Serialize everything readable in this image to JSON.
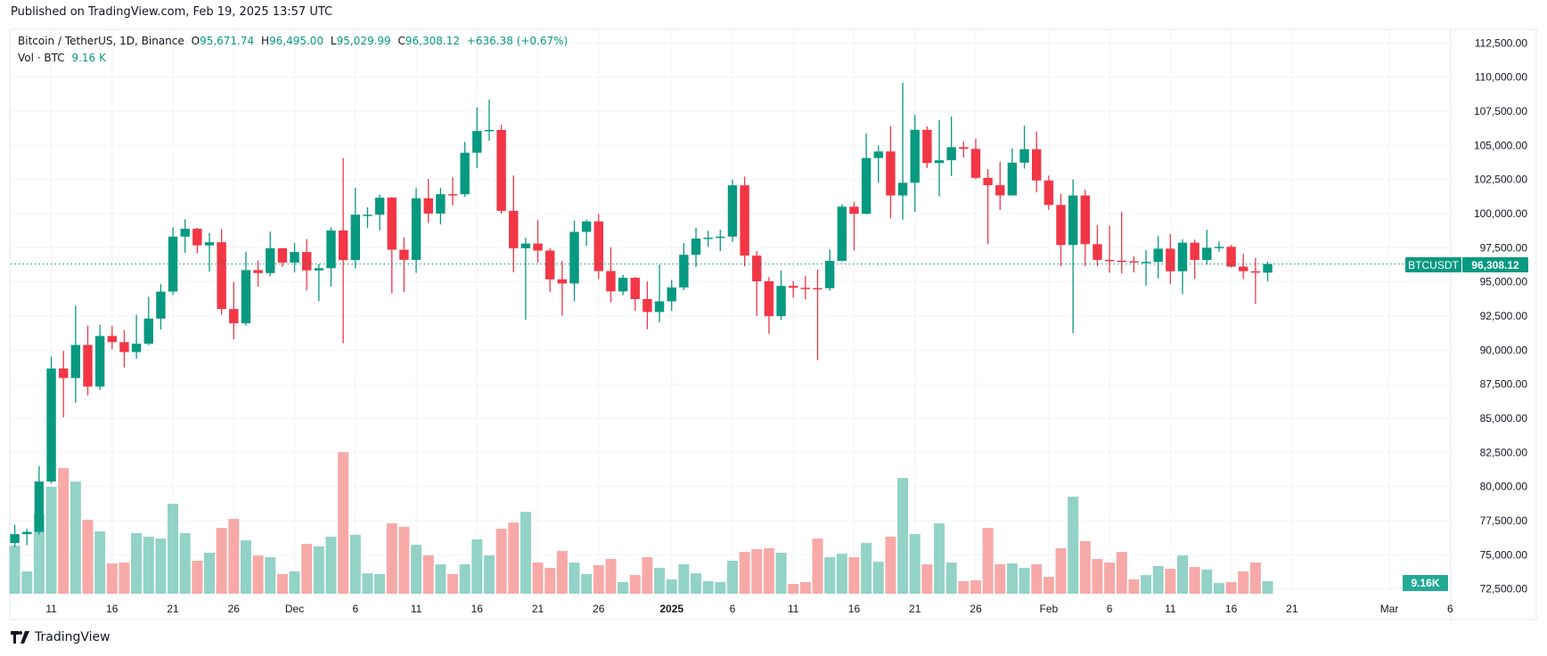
{
  "header": {
    "published": "Published on TradingView.com, Feb 19, 2025 13:57 UTC"
  },
  "legend": {
    "symbol": "Bitcoin / TetherUS, 1D, Binance",
    "o_label": "O",
    "o": "95,671.74",
    "h_label": "H",
    "h": "96,495.00",
    "l_label": "L",
    "l": "95,029.99",
    "c_label": "C",
    "c": "96,308.12",
    "change": "+636.38 (+0.67%)",
    "vol_label": "Vol · BTC",
    "vol": "9.16 K"
  },
  "footer": {
    "brand": "TradingView",
    "logo_icon": "tradingview-logo-icon"
  },
  "colors": {
    "up": "#089981",
    "down": "#F23645",
    "up_volume": "#92d2c7",
    "down_volume": "#f7a9a7",
    "grid": "#f0f3fa"
  },
  "price_label": {
    "symbol": "BTCUSDT",
    "price": "96,308.12",
    "volume": "9.16K"
  },
  "chart_data": {
    "type": "candlestick",
    "title": "Bitcoin / TetherUS, 1D, Binance",
    "ylim": [
      71500,
      113500
    ],
    "grid": true,
    "current_price": 96308.12,
    "y_ticks": [
      "72,500.00",
      "75,000.00",
      "77,500.00",
      "80,000.00",
      "82,500.00",
      "85,000.00",
      "87,500.00",
      "90,000.00",
      "92,500.00",
      "95,000.00",
      "97,500.00",
      "100,000.00",
      "102,500.00",
      "105,000.00",
      "107,500.00",
      "110,000.00",
      "112,500.00"
    ],
    "x_ticks": [
      {
        "label": "11",
        "date": "2024-11-11"
      },
      {
        "label": "16",
        "date": "2024-11-16"
      },
      {
        "label": "21",
        "date": "2024-11-21"
      },
      {
        "label": "26",
        "date": "2024-11-26"
      },
      {
        "label": "Dec",
        "date": "2024-12-01"
      },
      {
        "label": "6",
        "date": "2024-12-06"
      },
      {
        "label": "11",
        "date": "2024-12-11"
      },
      {
        "label": "16",
        "date": "2024-12-16"
      },
      {
        "label": "21",
        "date": "2024-12-21"
      },
      {
        "label": "26",
        "date": "2024-12-26"
      },
      {
        "label": "2025",
        "date": "2025-01-01",
        "bold": true
      },
      {
        "label": "6",
        "date": "2025-01-06"
      },
      {
        "label": "11",
        "date": "2025-01-11"
      },
      {
        "label": "16",
        "date": "2025-01-16"
      },
      {
        "label": "21",
        "date": "2025-01-21"
      },
      {
        "label": "26",
        "date": "2025-01-26"
      },
      {
        "label": "Feb",
        "date": "2025-02-01"
      },
      {
        "label": "6",
        "date": "2025-02-06"
      },
      {
        "label": "11",
        "date": "2025-02-11"
      },
      {
        "label": "16",
        "date": "2025-02-16"
      },
      {
        "label": "21",
        "date": "2025-02-21"
      },
      {
        "label": "Mar",
        "date": "2025-03-01"
      },
      {
        "label": "6",
        "date": "2025-03-06"
      }
    ],
    "columns": [
      "date",
      "open",
      "high",
      "low",
      "close",
      "volume_k_btc"
    ],
    "candles": [
      [
        "2024-11-08",
        75857,
        77199,
        75555,
        76509,
        35.3
      ],
      [
        "2024-11-09",
        76509,
        76900,
        75700,
        76677,
        16.4
      ],
      [
        "2024-11-10",
        76677,
        81500,
        76492,
        80370,
        58.9
      ],
      [
        "2024-11-11",
        80370,
        89530,
        80216,
        88647,
        78.5
      ],
      [
        "2024-11-12",
        88647,
        89940,
        85072,
        87952,
        92.2
      ],
      [
        "2024-11-13",
        87952,
        93265,
        86127,
        90375,
        82.4
      ],
      [
        "2024-11-14",
        90375,
        91790,
        86668,
        87325,
        54.3
      ],
      [
        "2024-11-15",
        87325,
        91850,
        87073,
        91032,
        45.8
      ],
      [
        "2024-11-16",
        91032,
        91779,
        90056,
        90586,
        22.2
      ],
      [
        "2024-11-17",
        90586,
        91449,
        88722,
        89855,
        22.9
      ],
      [
        "2024-11-18",
        89855,
        92594,
        89376,
        90464,
        44.5
      ],
      [
        "2024-11-19",
        90464,
        93905,
        90357,
        92310,
        41.9
      ],
      [
        "2024-11-20",
        92310,
        94831,
        91500,
        94286,
        40.5
      ],
      [
        "2024-11-21",
        94286,
        98988,
        94040,
        98317,
        66.1
      ],
      [
        "2024-11-22",
        98317,
        99588,
        97122,
        98892,
        44.5
      ],
      [
        "2024-11-23",
        98892,
        98950,
        97100,
        97672,
        24.2
      ],
      [
        "2024-11-24",
        97672,
        98564,
        95734,
        97900,
        30.1
      ],
      [
        "2024-11-25",
        97900,
        98871,
        92600,
        93010,
        48.4
      ],
      [
        "2024-11-26",
        93010,
        94973,
        90791,
        91965,
        54.9
      ],
      [
        "2024-11-27",
        91965,
        97208,
        91792,
        95863,
        39.2
      ],
      [
        "2024-11-28",
        95863,
        96564,
        94640,
        95643,
        28.1
      ],
      [
        "2024-11-29",
        95643,
        98693,
        95407,
        97460,
        26.8
      ],
      [
        "2024-11-30",
        97460,
        97463,
        96092,
        96407,
        14.4
      ],
      [
        "2024-12-01",
        96407,
        97836,
        95693,
        97185,
        16.4
      ],
      [
        "2024-12-02",
        97185,
        98130,
        94395,
        95840,
        36.6
      ],
      [
        "2024-12-03",
        95840,
        96305,
        93578,
        96002,
        34.7
      ],
      [
        "2024-12-04",
        96002,
        99000,
        94665,
        98768,
        41.9
      ],
      [
        "2024-12-05",
        98768,
        104088,
        90500,
        96593,
        104.0
      ],
      [
        "2024-12-06",
        96593,
        101898,
        95981,
        99920,
        43.2
      ],
      [
        "2024-12-07",
        99920,
        100459,
        98956,
        99923,
        15.0
      ],
      [
        "2024-12-08",
        99923,
        101399,
        98771,
        101170,
        14.4
      ],
      [
        "2024-12-09",
        101170,
        101215,
        94150,
        97356,
        51.7
      ],
      [
        "2024-12-10",
        97356,
        98270,
        94256,
        96612,
        49.1
      ],
      [
        "2024-12-11",
        96612,
        101895,
        95658,
        101125,
        36.0
      ],
      [
        "2024-12-12",
        101125,
        102540,
        99311,
        100004,
        28.1
      ],
      [
        "2024-12-13",
        100004,
        101895,
        99205,
        101424,
        21.6
      ],
      [
        "2024-12-14",
        101424,
        102650,
        100610,
        101420,
        14.4
      ],
      [
        "2024-12-15",
        101420,
        105250,
        101237,
        104463,
        21.6
      ],
      [
        "2024-12-16",
        104463,
        107793,
        103333,
        106058,
        39.9
      ],
      [
        "2024-12-17",
        106058,
        108353,
        105321,
        106133,
        28.1
      ],
      [
        "2024-12-18",
        106133,
        106524,
        100000,
        100204,
        47.7
      ],
      [
        "2024-12-19",
        100204,
        102800,
        95700,
        97461,
        52.3
      ],
      [
        "2024-12-20",
        97461,
        98233,
        92232,
        97805,
        60.2
      ],
      [
        "2024-12-21",
        97805,
        99540,
        96398,
        97291,
        22.9
      ],
      [
        "2024-12-22",
        97291,
        97448,
        94250,
        95186,
        19.0
      ],
      [
        "2024-12-23",
        95186,
        96538,
        92520,
        94881,
        31.4
      ],
      [
        "2024-12-24",
        94881,
        99487,
        93569,
        98663,
        22.9
      ],
      [
        "2024-12-25",
        98663,
        99569,
        97632,
        99429,
        14.4
      ],
      [
        "2024-12-26",
        99429,
        99963,
        95199,
        95792,
        20.9
      ],
      [
        "2024-12-27",
        95792,
        97544,
        93500,
        94300,
        25.5
      ],
      [
        "2024-12-28",
        94300,
        95500,
        94014,
        95300,
        8.5
      ],
      [
        "2024-12-29",
        95300,
        95350,
        92881,
        93738,
        13.7
      ],
      [
        "2024-12-30",
        93738,
        95024,
        91530,
        92792,
        26.8
      ],
      [
        "2024-12-31",
        92792,
        96250,
        92033,
        93576,
        19.0
      ],
      [
        "2025-01-01",
        93576,
        95151,
        92870,
        94591,
        10.5
      ],
      [
        "2025-01-02",
        94591,
        97839,
        94392,
        96984,
        21.6
      ],
      [
        "2025-01-03",
        96984,
        98976,
        96100,
        98174,
        15.0
      ],
      [
        "2025-01-04",
        98174,
        98734,
        97562,
        98236,
        9.2
      ],
      [
        "2025-01-05",
        98236,
        98813,
        97258,
        98314,
        8.5
      ],
      [
        "2025-01-06",
        98314,
        102482,
        97926,
        102078,
        24.2
      ],
      [
        "2025-01-07",
        102078,
        102712,
        96132,
        96922,
        30.7
      ],
      [
        "2025-01-08",
        96922,
        97258,
        92500,
        95043,
        32.7
      ],
      [
        "2025-01-09",
        95043,
        95349,
        91203,
        92484,
        33.4
      ],
      [
        "2025-01-10",
        92484,
        95836,
        92206,
        94701,
        30.1
      ],
      [
        "2025-01-11",
        94701,
        95050,
        93831,
        94566,
        7.2
      ],
      [
        "2025-01-12",
        94566,
        95450,
        93711,
        94545,
        8.5
      ],
      [
        "2025-01-13",
        94545,
        95900,
        89256,
        94536,
        40.5
      ],
      [
        "2025-01-14",
        94536,
        97371,
        94346,
        96534,
        26.8
      ],
      [
        "2025-01-15",
        96534,
        100681,
        96500,
        100505,
        29.4
      ],
      [
        "2025-01-16",
        100505,
        100873,
        97300,
        99987,
        26.8
      ],
      [
        "2025-01-17",
        99987,
        105865,
        99950,
        104077,
        37.3
      ],
      [
        "2025-01-18",
        104077,
        104988,
        102277,
        104556,
        23.5
      ],
      [
        "2025-01-19",
        104556,
        106422,
        99651,
        101331,
        41.9
      ],
      [
        "2025-01-20",
        101331,
        109588,
        99550,
        102260,
        85.0
      ],
      [
        "2025-01-21",
        102260,
        107240,
        100119,
        106143,
        43.8
      ],
      [
        "2025-01-22",
        106143,
        106394,
        103339,
        103706,
        21.6
      ],
      [
        "2025-01-23",
        103706,
        106850,
        101262,
        103910,
        51.7
      ],
      [
        "2025-01-24",
        103910,
        107120,
        102750,
        104870,
        22.9
      ],
      [
        "2025-01-25",
        104870,
        105286,
        104106,
        104746,
        9.2
      ],
      [
        "2025-01-26",
        104746,
        105500,
        102520,
        102620,
        9.8
      ],
      [
        "2025-01-27",
        102620,
        103260,
        97777,
        102082,
        48.4
      ],
      [
        "2025-01-28",
        102082,
        103800,
        100272,
        101335,
        21.6
      ],
      [
        "2025-01-29",
        101335,
        104782,
        101328,
        103733,
        22.2
      ],
      [
        "2025-01-30",
        103733,
        106457,
        103300,
        104722,
        19.0
      ],
      [
        "2025-01-31",
        104722,
        106012,
        101560,
        102429,
        21.6
      ],
      [
        "2025-02-01",
        102429,
        102783,
        100279,
        100635,
        12.4
      ],
      [
        "2025-02-02",
        100635,
        101456,
        96150,
        97700,
        33.4
      ],
      [
        "2025-02-03",
        97700,
        102500,
        91231,
        101328,
        71.3
      ],
      [
        "2025-02-04",
        101328,
        101744,
        96150,
        97763,
        38.6
      ],
      [
        "2025-02-05",
        97763,
        99149,
        96155,
        96612,
        25.5
      ],
      [
        "2025-02-06",
        96612,
        99120,
        95676,
        96554,
        22.9
      ],
      [
        "2025-02-07",
        96554,
        100137,
        95620,
        96506,
        30.7
      ],
      [
        "2025-02-08",
        96506,
        96880,
        95688,
        96444,
        10.5
      ],
      [
        "2025-02-09",
        96444,
        97323,
        94713,
        96462,
        13.7
      ],
      [
        "2025-02-10",
        96462,
        98345,
        95256,
        97430,
        20.3
      ],
      [
        "2025-02-11",
        97430,
        98500,
        94850,
        95778,
        18.3
      ],
      [
        "2025-02-12",
        95778,
        98119,
        94088,
        97870,
        28.1
      ],
      [
        "2025-02-13",
        97870,
        98100,
        95217,
        96608,
        19.6
      ],
      [
        "2025-02-14",
        96608,
        98826,
        96252,
        97500,
        17.7
      ],
      [
        "2025-02-15",
        97500,
        97972,
        97223,
        97569,
        7.8
      ],
      [
        "2025-02-16",
        97569,
        97704,
        96046,
        96118,
        8.5
      ],
      [
        "2025-02-17",
        96118,
        97046,
        95205,
        95780,
        16.4
      ],
      [
        "2025-02-18",
        95780,
        96753,
        93388,
        95671.74,
        22.9
      ],
      [
        "2025-02-19",
        95671.74,
        96495,
        95029.99,
        96308.12,
        9.16
      ]
    ]
  }
}
